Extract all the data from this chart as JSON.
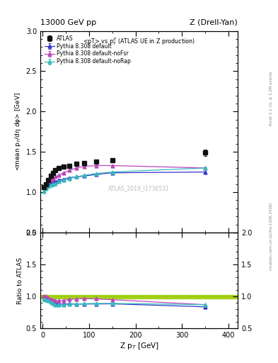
{
  "title_left": "13000 GeV pp",
  "title_right": "Z (Drell-Yan)",
  "plot_title": "<pT> vs p$_T^Z$ (ATLAS UE in Z production)",
  "ylabel_main": "<mean p$_T$/dη dφ> [GeV]",
  "ylabel_ratio": "Ratio to ATLAS",
  "xlabel": "Z p$_T$ [GeV]",
  "watermark": "ATLAS_2019_I1736531",
  "right_label": "mcplots.cern.ch [arXiv:1306.3436]",
  "right_label2": "Rivet 3.1.10, ≥ 3.2M events",
  "atlas_x": [
    2.5,
    7.5,
    12.5,
    17.5,
    22.5,
    27.5,
    35,
    45,
    57.5,
    72.5,
    90,
    115,
    150,
    350
  ],
  "atlas_y": [
    1.06,
    1.1,
    1.15,
    1.2,
    1.24,
    1.27,
    1.3,
    1.32,
    1.33,
    1.35,
    1.36,
    1.38,
    1.4,
    1.49
  ],
  "atlas_yerr": [
    0.01,
    0.01,
    0.01,
    0.01,
    0.01,
    0.01,
    0.01,
    0.01,
    0.01,
    0.01,
    0.01,
    0.01,
    0.015,
    0.04
  ],
  "py_default_x": [
    2.5,
    7.5,
    12.5,
    17.5,
    22.5,
    27.5,
    35,
    45,
    57.5,
    72.5,
    90,
    115,
    150,
    350
  ],
  "py_default_y": [
    1.06,
    1.09,
    1.1,
    1.11,
    1.12,
    1.13,
    1.15,
    1.16,
    1.18,
    1.19,
    1.2,
    1.22,
    1.24,
    1.25
  ],
  "py_default_yerr": [
    0.003,
    0.003,
    0.003,
    0.003,
    0.003,
    0.003,
    0.003,
    0.003,
    0.003,
    0.003,
    0.003,
    0.003,
    0.003,
    0.008
  ],
  "py_noFsr_x": [
    2.5,
    7.5,
    12.5,
    17.5,
    22.5,
    27.5,
    35,
    45,
    57.5,
    72.5,
    90,
    115,
    150,
    350
  ],
  "py_noFsr_y": [
    1.06,
    1.1,
    1.13,
    1.15,
    1.17,
    1.19,
    1.21,
    1.24,
    1.27,
    1.3,
    1.32,
    1.33,
    1.33,
    1.3
  ],
  "py_noFsr_yerr": [
    0.003,
    0.003,
    0.003,
    0.003,
    0.003,
    0.003,
    0.003,
    0.003,
    0.003,
    0.003,
    0.003,
    0.003,
    0.003,
    0.008
  ],
  "py_noRap_x": [
    2.5,
    7.5,
    12.5,
    17.5,
    22.5,
    27.5,
    35,
    45,
    57.5,
    72.5,
    90,
    115,
    150,
    350
  ],
  "py_noRap_y": [
    1.01,
    1.04,
    1.07,
    1.09,
    1.1,
    1.11,
    1.13,
    1.15,
    1.17,
    1.19,
    1.21,
    1.23,
    1.25,
    1.3
  ],
  "py_noRap_yerr": [
    0.003,
    0.003,
    0.003,
    0.003,
    0.003,
    0.003,
    0.003,
    0.003,
    0.003,
    0.003,
    0.003,
    0.003,
    0.003,
    0.008
  ],
  "color_default": "#3333cc",
  "color_noFsr": "#bb44bb",
  "color_noRap": "#33bbbb",
  "color_atlas": "#111111",
  "color_green_band": "#99cc00",
  "main_ylim": [
    0.5,
    3.0
  ],
  "ratio_ylim": [
    0.5,
    2.0
  ],
  "xlim": [
    -5,
    420
  ]
}
